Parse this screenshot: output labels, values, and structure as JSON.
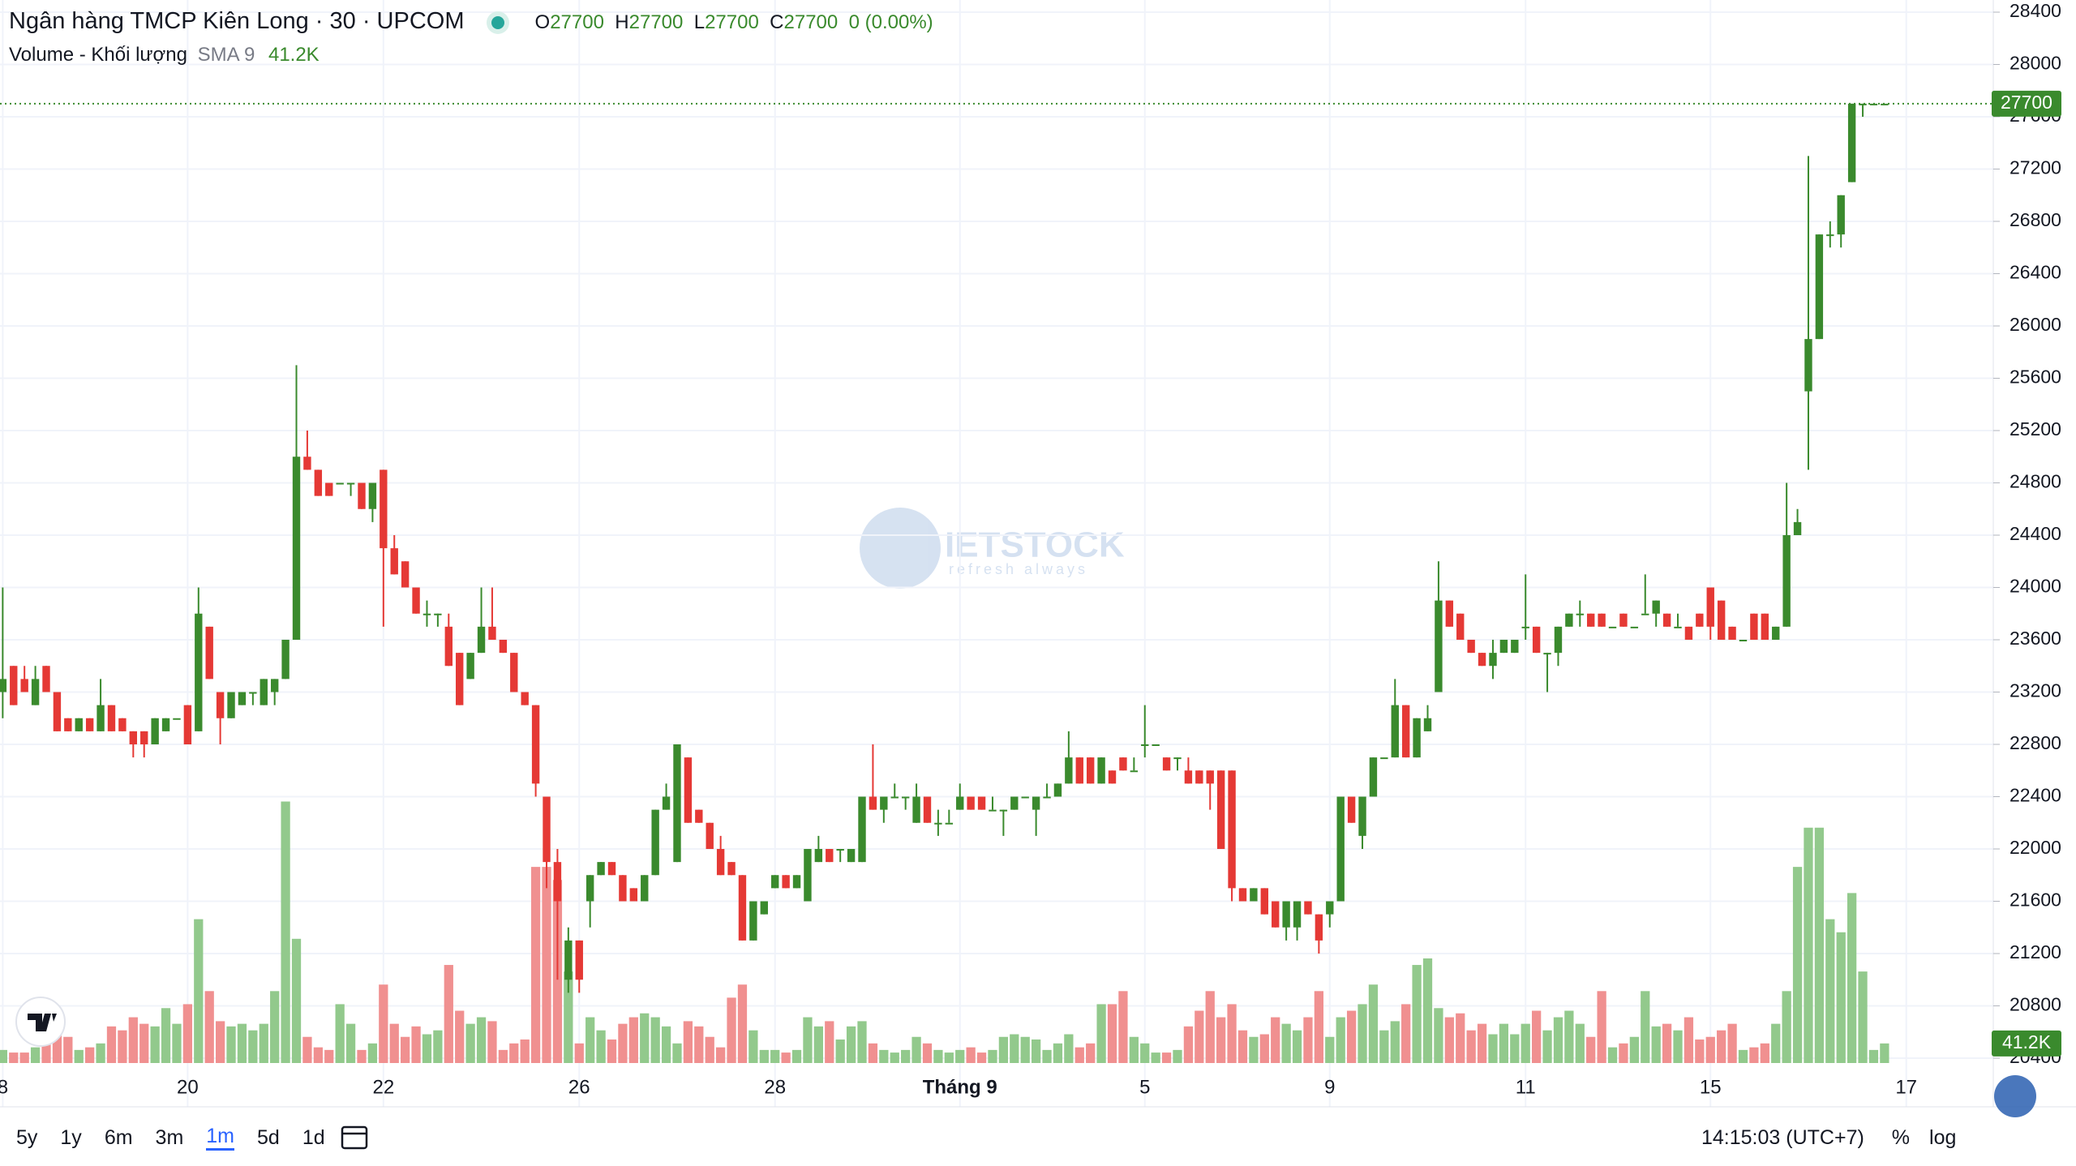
{
  "header": {
    "title": "Ngân hàng TMCP Kiên Long · 30 · UPCOM",
    "ohlc_labels": [
      "O",
      "H",
      "L",
      "C"
    ],
    "change_label": "0 (0.00%)",
    "volume_title": "Volume - Khối lượng",
    "volume_sma": "SMA 9"
  },
  "chart_data": {
    "type": "candlestick",
    "up_color": "#3a8a2d",
    "down_color": "#e53935",
    "volume_up_color": "#92c98c",
    "volume_down_color": "#f09090",
    "grid": true,
    "ylim": [
      20400,
      28400
    ],
    "yticks": [
      20400,
      20800,
      21200,
      21600,
      22000,
      22400,
      22800,
      23200,
      23600,
      24000,
      24400,
      24800,
      25200,
      25600,
      26000,
      26400,
      26800,
      27200,
      27600,
      28000,
      28400
    ],
    "xlim": [
      -0.25,
      183
    ],
    "xticks": [
      {
        "value": 0,
        "label": "8"
      },
      {
        "value": 17,
        "label": "20"
      },
      {
        "value": 35,
        "label": "22"
      },
      {
        "value": 53,
        "label": "26"
      },
      {
        "value": 71,
        "label": "28"
      },
      {
        "value": 88,
        "label": "Tháng 9"
      },
      {
        "value": 105,
        "label": "5"
      },
      {
        "value": 122,
        "label": "9"
      },
      {
        "value": 140,
        "label": "11"
      },
      {
        "value": 157,
        "label": "15"
      },
      {
        "value": 175,
        "label": "17"
      }
    ],
    "candles": [
      [
        23200,
        24000,
        23000,
        23300
      ],
      [
        23400,
        23400,
        23100,
        23100
      ],
      [
        23300,
        23400,
        23200,
        23200
      ],
      [
        23100,
        23400,
        23100,
        23300
      ],
      [
        23400,
        23400,
        23200,
        23200
      ],
      [
        23200,
        23200,
        22900,
        22900
      ],
      [
        23000,
        23000,
        22900,
        22900
      ],
      [
        22900,
        23000,
        22900,
        23000
      ],
      [
        23000,
        23000,
        22900,
        22900
      ],
      [
        22900,
        23300,
        22900,
        23100
      ],
      [
        23100,
        23100,
        22900,
        22900
      ],
      [
        23000,
        23000,
        22900,
        22900
      ],
      [
        22900,
        22900,
        22700,
        22800
      ],
      [
        22900,
        22900,
        22700,
        22800
      ],
      [
        22800,
        23000,
        22800,
        23000
      ],
      [
        22900,
        23000,
        22900,
        23000
      ],
      [
        23000,
        23000,
        23000,
        23000
      ],
      [
        23100,
        23100,
        22800,
        22800
      ],
      [
        22900,
        24000,
        22900,
        23800
      ],
      [
        23700,
        23700,
        23300,
        23300
      ],
      [
        23200,
        23200,
        22800,
        23000
      ],
      [
        23000,
        23200,
        23000,
        23200
      ],
      [
        23100,
        23200,
        23100,
        23200
      ],
      [
        23200,
        23200,
        23100,
        23200
      ],
      [
        23100,
        23300,
        23100,
        23300
      ],
      [
        23200,
        23300,
        23100,
        23300
      ],
      [
        23300,
        23600,
        23300,
        23600
      ],
      [
        23600,
        25700,
        23600,
        25000
      ],
      [
        25000,
        25200,
        24900,
        24900
      ],
      [
        24900,
        24900,
        24700,
        24700
      ],
      [
        24800,
        24800,
        24700,
        24700
      ],
      [
        24800,
        24800,
        24800,
        24800
      ],
      [
        24800,
        24800,
        24700,
        24800
      ],
      [
        24800,
        24800,
        24600,
        24600
      ],
      [
        24600,
        24800,
        24500,
        24800
      ],
      [
        24900,
        24900,
        23700,
        24300
      ],
      [
        24300,
        24400,
        24100,
        24100
      ],
      [
        24200,
        24200,
        24000,
        24000
      ],
      [
        24000,
        24000,
        23800,
        23800
      ],
      [
        23800,
        23900,
        23700,
        23800
      ],
      [
        23800,
        23800,
        23700,
        23800
      ],
      [
        23700,
        23800,
        23400,
        23400
      ],
      [
        23500,
        23500,
        23100,
        23100
      ],
      [
        23300,
        23500,
        23300,
        23500
      ],
      [
        23500,
        24000,
        23500,
        23700
      ],
      [
        23700,
        24000,
        23600,
        23600
      ],
      [
        23600,
        23600,
        23500,
        23500
      ],
      [
        23500,
        23500,
        23200,
        23200
      ],
      [
        23200,
        23200,
        23100,
        23100
      ],
      [
        23100,
        23100,
        22400,
        22500
      ],
      [
        22400,
        22400,
        21700,
        21900
      ],
      [
        21900,
        22000,
        21000,
        21600
      ],
      [
        21000,
        21400,
        20900,
        21300
      ],
      [
        21300,
        21300,
        20900,
        21000
      ],
      [
        21600,
        21800,
        21400,
        21800
      ],
      [
        21800,
        21900,
        21800,
        21900
      ],
      [
        21900,
        21900,
        21800,
        21800
      ],
      [
        21800,
        21800,
        21600,
        21600
      ],
      [
        21700,
        21700,
        21600,
        21600
      ],
      [
        21600,
        21800,
        21600,
        21800
      ],
      [
        21800,
        22300,
        21800,
        22300
      ],
      [
        22300,
        22500,
        22300,
        22400
      ],
      [
        21900,
        22800,
        21900,
        22800
      ],
      [
        22700,
        22700,
        22200,
        22200
      ],
      [
        22300,
        22300,
        22200,
        22200
      ],
      [
        22200,
        22200,
        22000,
        22000
      ],
      [
        22000,
        22100,
        21800,
        21800
      ],
      [
        21900,
        21900,
        21800,
        21800
      ],
      [
        21800,
        21800,
        21300,
        21300
      ],
      [
        21300,
        21600,
        21300,
        21600
      ],
      [
        21500,
        21600,
        21500,
        21600
      ],
      [
        21700,
        21800,
        21700,
        21800
      ],
      [
        21800,
        21800,
        21700,
        21700
      ],
      [
        21700,
        21800,
        21700,
        21800
      ],
      [
        21600,
        22000,
        21600,
        22000
      ],
      [
        21900,
        22100,
        21900,
        22000
      ],
      [
        22000,
        22000,
        21900,
        21900
      ],
      [
        22000,
        22000,
        21900,
        22000
      ],
      [
        21900,
        22000,
        21900,
        22000
      ],
      [
        21900,
        22400,
        21900,
        22400
      ],
      [
        22400,
        22800,
        22300,
        22300
      ],
      [
        22300,
        22400,
        22200,
        22400
      ],
      [
        22400,
        22500,
        22400,
        22400
      ],
      [
        22400,
        22400,
        22300,
        22400
      ],
      [
        22200,
        22500,
        22200,
        22400
      ],
      [
        22400,
        22400,
        22200,
        22200
      ],
      [
        22200,
        22300,
        22100,
        22200
      ],
      [
        22200,
        22300,
        22200,
        22200
      ],
      [
        22300,
        22500,
        22300,
        22400
      ],
      [
        22400,
        22400,
        22300,
        22300
      ],
      [
        22400,
        22400,
        22300,
        22300
      ],
      [
        22300,
        22400,
        22300,
        22300
      ],
      [
        22300,
        22300,
        22100,
        22300
      ],
      [
        22300,
        22400,
        22300,
        22400
      ],
      [
        22400,
        22400,
        22400,
        22400
      ],
      [
        22300,
        22400,
        22100,
        22400
      ],
      [
        22400,
        22500,
        22400,
        22400
      ],
      [
        22400,
        22500,
        22400,
        22500
      ],
      [
        22500,
        22900,
        22500,
        22700
      ],
      [
        22700,
        22700,
        22500,
        22500
      ],
      [
        22700,
        22700,
        22500,
        22500
      ],
      [
        22500,
        22700,
        22500,
        22700
      ],
      [
        22600,
        22600,
        22500,
        22500
      ],
      [
        22700,
        22700,
        22600,
        22600
      ],
      [
        22600,
        22700,
        22600,
        22600
      ],
      [
        22800,
        23100,
        22700,
        22800
      ],
      [
        22800,
        22800,
        22800,
        22800
      ],
      [
        22700,
        22700,
        22600,
        22600
      ],
      [
        22700,
        22700,
        22600,
        22700
      ],
      [
        22600,
        22700,
        22500,
        22500
      ],
      [
        22600,
        22600,
        22500,
        22500
      ],
      [
        22600,
        22600,
        22300,
        22500
      ],
      [
        22600,
        22600,
        22000,
        22000
      ],
      [
        22600,
        22600,
        21600,
        21700
      ],
      [
        21700,
        21700,
        21600,
        21600
      ],
      [
        21600,
        21700,
        21600,
        21700
      ],
      [
        21700,
        21700,
        21500,
        21500
      ],
      [
        21600,
        21600,
        21400,
        21400
      ],
      [
        21400,
        21600,
        21300,
        21600
      ],
      [
        21400,
        21600,
        21300,
        21600
      ],
      [
        21600,
        21600,
        21500,
        21500
      ],
      [
        21500,
        21500,
        21200,
        21300
      ],
      [
        21500,
        21600,
        21400,
        21600
      ],
      [
        21600,
        22400,
        21600,
        22400
      ],
      [
        22400,
        22400,
        22200,
        22200
      ],
      [
        22100,
        22400,
        22000,
        22400
      ],
      [
        22400,
        22700,
        22400,
        22700
      ],
      [
        22700,
        22700,
        22700,
        22700
      ],
      [
        22700,
        23300,
        22700,
        23100
      ],
      [
        23100,
        23100,
        22700,
        22700
      ],
      [
        22700,
        23000,
        22700,
        23000
      ],
      [
        22900,
        23100,
        22900,
        23000
      ],
      [
        23200,
        24200,
        23200,
        23900
      ],
      [
        23900,
        23900,
        23700,
        23700
      ],
      [
        23800,
        23800,
        23600,
        23600
      ],
      [
        23600,
        23600,
        23500,
        23500
      ],
      [
        23500,
        23500,
        23400,
        23400
      ],
      [
        23400,
        23600,
        23300,
        23500
      ],
      [
        23500,
        23600,
        23500,
        23600
      ],
      [
        23500,
        23600,
        23500,
        23600
      ],
      [
        23700,
        24100,
        23600,
        23700
      ],
      [
        23700,
        23700,
        23500,
        23500
      ],
      [
        23500,
        23500,
        23200,
        23500
      ],
      [
        23500,
        23700,
        23400,
        23700
      ],
      [
        23700,
        23800,
        23700,
        23800
      ],
      [
        23800,
        23900,
        23700,
        23800
      ],
      [
        23800,
        23800,
        23700,
        23700
      ],
      [
        23800,
        23800,
        23700,
        23700
      ],
      [
        23700,
        23700,
        23700,
        23700
      ],
      [
        23800,
        23800,
        23700,
        23700
      ],
      [
        23700,
        23700,
        23700,
        23700
      ],
      [
        23800,
        24100,
        23800,
        23800
      ],
      [
        23800,
        23900,
        23700,
        23900
      ],
      [
        23800,
        23800,
        23700,
        23700
      ],
      [
        23700,
        23800,
        23700,
        23700
      ],
      [
        23700,
        23700,
        23600,
        23600
      ],
      [
        23800,
        23800,
        23700,
        23700
      ],
      [
        24000,
        24000,
        23600,
        23700
      ],
      [
        23900,
        23900,
        23600,
        23600
      ],
      [
        23700,
        23700,
        23600,
        23600
      ],
      [
        23600,
        23600,
        23600,
        23600
      ],
      [
        23800,
        23800,
        23600,
        23600
      ],
      [
        23800,
        23800,
        23600,
        23600
      ],
      [
        23600,
        23700,
        23600,
        23700
      ],
      [
        23700,
        24800,
        23700,
        24400
      ],
      [
        24400,
        24600,
        24400,
        24500
      ],
      [
        25500,
        27300,
        24900,
        25900
      ],
      [
        25900,
        26700,
        25900,
        26700
      ],
      [
        26700,
        26800,
        26600,
        26700
      ],
      [
        26700,
        27000,
        26600,
        27000
      ],
      [
        27100,
        27700,
        27100,
        27700
      ],
      [
        27700,
        27700,
        27600,
        27700
      ],
      [
        27700,
        27700,
        27700,
        27700
      ],
      [
        27700,
        27700,
        27700,
        27700
      ]
    ],
    "volume": {
      "ylim": [
        0,
        2200000
      ],
      "last_label": "41.2K",
      "values": [
        27500,
        22000,
        22000,
        33000,
        41250,
        96250,
        55000,
        27500,
        33000,
        41250,
        77000,
        68750,
        96250,
        82500,
        77000,
        115500,
        82500,
        123750,
        302500,
        151250,
        88000,
        77000,
        82500,
        68750,
        82500,
        151250,
        550000,
        261250,
        55000,
        33000,
        27500,
        123750,
        82500,
        27500,
        41250,
        165000,
        82500,
        55000,
        77000,
        60500,
        68750,
        206250,
        110000,
        82500,
        96250,
        88000,
        27500,
        41250,
        49500,
        412500,
        412500,
        385000,
        192500,
        41250,
        96250,
        68750,
        49500,
        82500,
        96250,
        104500,
        96250,
        77000,
        41250,
        88000,
        77000,
        55000,
        33000,
        137500,
        165000,
        68750,
        27500,
        27500,
        22000,
        27500,
        96250,
        77000,
        88000,
        49500,
        77000,
        88000,
        41250,
        27500,
        22000,
        27500,
        55000,
        41250,
        27500,
        22000,
        27500,
        33000,
        22000,
        27500,
        55000,
        60500,
        55000,
        49500,
        27500,
        41250,
        60500,
        33000,
        41250,
        123750,
        123750,
        151250,
        55000,
        41250,
        22000,
        22000,
        27500,
        77000,
        110000,
        151250,
        96250,
        123750,
        68750,
        55000,
        60500,
        96250,
        82500,
        68750,
        96250,
        151250,
        55000,
        96250,
        110000,
        123750,
        165000,
        68750,
        88000,
        123750,
        206250,
        220000,
        115500,
        96250,
        104500,
        68750,
        82500,
        60500,
        82500,
        60500,
        82500,
        110000,
        68750,
        96250,
        110000,
        82500,
        55000,
        151250,
        33000,
        41250,
        55000,
        151250,
        77000,
        82500,
        68750,
        96250,
        49500,
        55000,
        68750,
        82500,
        27500,
        33000,
        41250,
        82500,
        151250,
        412500,
        495000,
        495000,
        302500,
        275000,
        357500,
        192500,
        27500,
        41200
      ]
    }
  },
  "toolbar": {
    "ranges": [
      "5y",
      "1y",
      "6m",
      "3m",
      "1m",
      "5d",
      "1d"
    ],
    "time": "14:15:03 (UTC+7)",
    "percent": "%",
    "log": "log"
  },
  "watermark": {
    "brand": "IETSTOCK",
    "tagline": "refresh always"
  }
}
